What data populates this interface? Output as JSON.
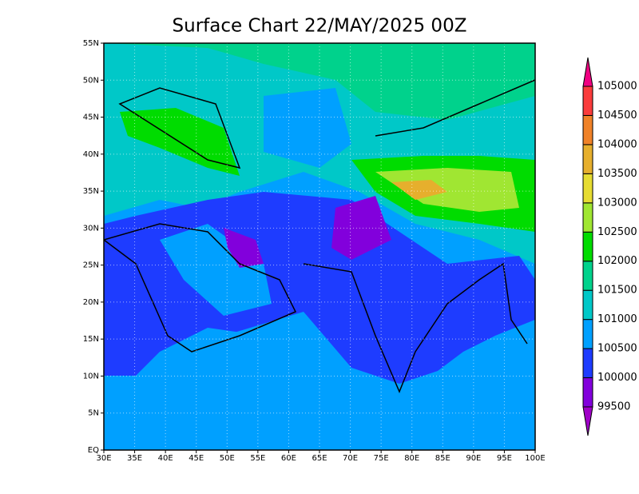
{
  "title": "Surface Chart 22/MAY/2025 00Z",
  "map": {
    "lon_range": [
      30,
      100
    ],
    "lat_range": [
      0,
      55
    ],
    "lon_ticks": [
      {
        "value": 30,
        "label": "30E"
      },
      {
        "value": 35,
        "label": "35E"
      },
      {
        "value": 40,
        "label": "40E"
      },
      {
        "value": 45,
        "label": "45E"
      },
      {
        "value": 50,
        "label": "50E"
      },
      {
        "value": 55,
        "label": "55E"
      },
      {
        "value": 60,
        "label": "60E"
      },
      {
        "value": 65,
        "label": "65E"
      },
      {
        "value": 70,
        "label": "70E"
      },
      {
        "value": 75,
        "label": "75E"
      },
      {
        "value": 80,
        "label": "80E"
      },
      {
        "value": 85,
        "label": "85E"
      },
      {
        "value": 90,
        "label": "90E"
      },
      {
        "value": 95,
        "label": "95E"
      },
      {
        "value": 100,
        "label": "100E"
      }
    ],
    "lat_ticks": [
      {
        "value": 0,
        "label": "EQ"
      },
      {
        "value": 5,
        "label": "5N"
      },
      {
        "value": 10,
        "label": "10N"
      },
      {
        "value": 15,
        "label": "15N"
      },
      {
        "value": 20,
        "label": "20N"
      },
      {
        "value": 25,
        "label": "25N"
      },
      {
        "value": 30,
        "label": "30N"
      },
      {
        "value": 35,
        "label": "35N"
      },
      {
        "value": 40,
        "label": "40N"
      },
      {
        "value": 45,
        "label": "45N"
      },
      {
        "value": 50,
        "label": "50N"
      },
      {
        "value": 55,
        "label": "55N"
      }
    ]
  },
  "colorbar": {
    "levels": [
      99500,
      100000,
      100500,
      101000,
      101500,
      102000,
      102500,
      103000,
      103500,
      104000,
      104500,
      105000
    ],
    "colors": [
      "#a000c8",
      "#8200dc",
      "#1e3cff",
      "#00a0ff",
      "#00c8c8",
      "#00d28c",
      "#00dc00",
      "#a0e632",
      "#e6dc32",
      "#e6af2d",
      "#f08228",
      "#fa3c3c",
      "#f00082"
    ]
  }
}
